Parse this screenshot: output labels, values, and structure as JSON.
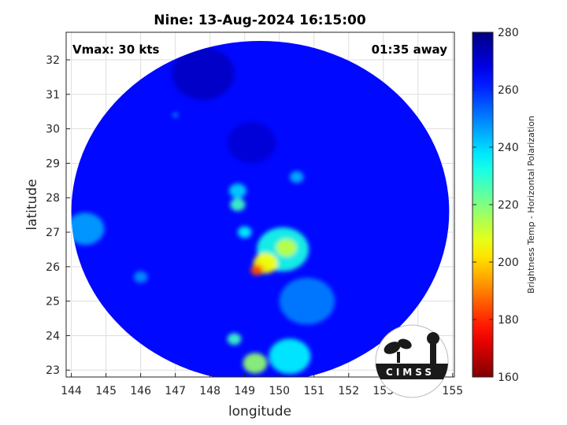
{
  "chart_data": {
    "type": "heatmap",
    "title": "Nine: 13-Aug-2024 16:15:00",
    "xlabel": "longitude",
    "ylabel": "latitude",
    "xlim": [
      143.85,
      155.05
    ],
    "ylim": [
      22.8,
      32.8
    ],
    "xticks": [
      144,
      145,
      146,
      147,
      148,
      149,
      150,
      151,
      152,
      153,
      154,
      155
    ],
    "yticks": [
      23,
      24,
      25,
      26,
      27,
      28,
      29,
      30,
      31,
      32
    ],
    "grid": true,
    "annotations": {
      "left": "Vmax: 30 kts",
      "right": "01:35 away"
    },
    "swath": {
      "center_lon": 149.45,
      "center_lat": 27.6,
      "radius_lon": 5.45,
      "radius_lat": 4.95
    },
    "background_value": 264,
    "features": [
      {
        "lon": 149.35,
        "lat": 25.9,
        "value": 184,
        "spread": 0.18
      },
      {
        "lon": 149.6,
        "lat": 26.1,
        "value": 205,
        "spread": 0.35
      },
      {
        "lon": 150.2,
        "lat": 26.55,
        "value": 212,
        "spread": 0.3
      },
      {
        "lon": 150.1,
        "lat": 26.5,
        "value": 232,
        "spread": 0.75
      },
      {
        "lon": 149.3,
        "lat": 23.2,
        "value": 218,
        "spread": 0.35
      },
      {
        "lon": 150.3,
        "lat": 23.4,
        "value": 236,
        "spread": 0.6
      },
      {
        "lon": 148.7,
        "lat": 23.9,
        "value": 228,
        "spread": 0.2
      },
      {
        "lon": 148.8,
        "lat": 27.8,
        "value": 228,
        "spread": 0.22
      },
      {
        "lon": 148.8,
        "lat": 28.2,
        "value": 240,
        "spread": 0.25
      },
      {
        "lon": 149.0,
        "lat": 27.0,
        "value": 236,
        "spread": 0.2
      },
      {
        "lon": 150.5,
        "lat": 28.6,
        "value": 244,
        "spread": 0.2
      },
      {
        "lon": 144.4,
        "lat": 27.1,
        "value": 246,
        "spread": 0.55
      },
      {
        "lon": 146.0,
        "lat": 25.7,
        "value": 248,
        "spread": 0.2
      },
      {
        "lon": 147.0,
        "lat": 30.4,
        "value": 246,
        "spread": 0.08
      },
      {
        "lon": 150.8,
        "lat": 25.0,
        "value": 250,
        "spread": 0.8
      },
      {
        "lon": 147.8,
        "lat": 31.6,
        "value": 272,
        "spread": 0.9
      },
      {
        "lon": 149.2,
        "lat": 29.6,
        "value": 270,
        "spread": 0.7
      }
    ],
    "colorbar": {
      "label": "Brightness Temp - Horizontal Polarization",
      "range": [
        160,
        280
      ],
      "ticks": [
        160,
        180,
        200,
        220,
        240,
        260,
        280
      ],
      "colormap": "jet"
    }
  },
  "logo": {
    "text": "CIMSS"
  },
  "colors": {
    "axis": "#262626",
    "grid": "#dedede",
    "background": "#ffffff"
  }
}
